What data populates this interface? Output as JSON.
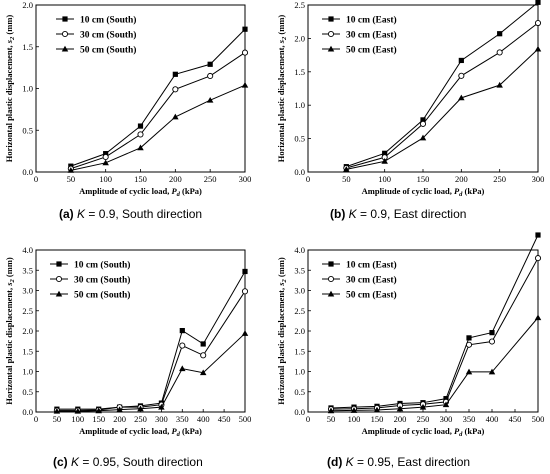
{
  "chart_data": [
    {
      "type": "line",
      "x": [
        50,
        100,
        150,
        200,
        250,
        300
      ],
      "xlim": [
        0,
        300
      ],
      "ylim": [
        0,
        2.0
      ],
      "xticks": [
        "0",
        "50",
        "100",
        "150",
        "200",
        "250",
        "300"
      ],
      "yticks": [
        "0.0",
        "0.5",
        "1.0",
        "1.5",
        "2.0"
      ],
      "xlabel_main": "Amplitude of cyclic load, ",
      "xlabel_var": "P",
      "xlabel_sub": "d",
      "xlabel_unit": " (kPa)",
      "ylabel_main": "Horizontal plastic displacement, ",
      "ylabel_var": "s",
      "ylabel_sub": "2",
      "ylabel_unit": " (mm)",
      "legend_position": "top-left",
      "series": [
        {
          "name": "10 cm (South)",
          "marker": "square",
          "values": [
            0.07,
            0.22,
            0.55,
            1.17,
            1.29,
            1.71
          ]
        },
        {
          "name": "30 cm (South)",
          "marker": "circle",
          "values": [
            0.04,
            0.18,
            0.45,
            0.99,
            1.15,
            1.43
          ]
        },
        {
          "name": "50 cm (South)",
          "marker": "triangle",
          "values": [
            0.02,
            0.11,
            0.29,
            0.66,
            0.86,
            1.04
          ]
        }
      ],
      "caption": {
        "label": "(a)",
        "k_var": "K",
        "rest": " = 0.9, South direction"
      }
    },
    {
      "type": "line",
      "x": [
        50,
        100,
        150,
        200,
        250,
        300
      ],
      "xlim": [
        0,
        300
      ],
      "ylim": [
        0,
        2.5
      ],
      "xticks": [
        "0",
        "50",
        "100",
        "150",
        "200",
        "250",
        "300"
      ],
      "yticks": [
        "0.0",
        "0.5",
        "1.0",
        "1.5",
        "2.0",
        "2.5"
      ],
      "xlabel_main": "Amplitude of cyclic load, ",
      "xlabel_var": "P",
      "xlabel_sub": "d",
      "xlabel_unit": " (kPa)",
      "ylabel_main": "Horizontal plastic displacement, ",
      "ylabel_var": "s",
      "ylabel_sub": "2",
      "ylabel_unit": " (mm)",
      "legend_position": "top-left",
      "series": [
        {
          "name": "10 cm (East)",
          "marker": "square",
          "values": [
            0.08,
            0.28,
            0.78,
            1.67,
            2.07,
            2.54
          ]
        },
        {
          "name": "30 cm (East)",
          "marker": "circle",
          "values": [
            0.06,
            0.22,
            0.72,
            1.44,
            1.79,
            2.23
          ]
        },
        {
          "name": "50 cm (East)",
          "marker": "triangle",
          "values": [
            0.04,
            0.16,
            0.51,
            1.11,
            1.3,
            1.84
          ]
        }
      ],
      "caption": {
        "label": "(b)",
        "k_var": "K",
        "rest": " = 0.9, East direction"
      }
    },
    {
      "type": "line",
      "x": [
        50,
        100,
        150,
        200,
        250,
        300,
        350,
        400,
        500
      ],
      "xlim": [
        0,
        500
      ],
      "ylim": [
        0,
        4.0
      ],
      "xticks": [
        "0",
        "50",
        "100",
        "150",
        "200",
        "250",
        "300",
        "350",
        "400",
        "450",
        "500"
      ],
      "yticks": [
        "0.0",
        "0.5",
        "1.0",
        "1.5",
        "2.0",
        "2.5",
        "3.0",
        "3.5",
        "4.0"
      ],
      "xlabel_main": "Amplitude of cyclic load, ",
      "xlabel_var": "P",
      "xlabel_sub": "d",
      "xlabel_unit": " (kPa)",
      "ylabel_main": "Horizontal plastic displacement, ",
      "ylabel_var": "s",
      "ylabel_sub": "2",
      "ylabel_unit": " (mm)",
      "legend_position": "top-left",
      "series": [
        {
          "name": "10 cm (South)",
          "marker": "square",
          "values": [
            0.07,
            0.07,
            0.07,
            0.12,
            0.15,
            0.22,
            2.01,
            1.68,
            3.47
          ]
        },
        {
          "name": "30 cm (South)",
          "marker": "circle",
          "values": [
            0.04,
            0.04,
            0.05,
            0.12,
            0.12,
            0.18,
            1.64,
            1.4,
            2.98
          ]
        },
        {
          "name": "50 cm (South)",
          "marker": "triangle",
          "values": [
            0.02,
            0.02,
            0.03,
            0.06,
            0.08,
            0.12,
            1.07,
            0.97,
            1.94
          ]
        }
      ],
      "caption": {
        "label": "(c)",
        "k_var": "K",
        "rest": " = 0.95, South direction"
      }
    },
    {
      "type": "line",
      "x": [
        50,
        100,
        150,
        200,
        250,
        300,
        350,
        400,
        500
      ],
      "xlim": [
        0,
        500
      ],
      "ylim": [
        0,
        4.0
      ],
      "xticks": [
        "0",
        "50",
        "100",
        "150",
        "200",
        "250",
        "300",
        "350",
        "400",
        "450",
        "500"
      ],
      "yticks": [
        "0.0",
        "0.5",
        "1.0",
        "1.5",
        "2.0",
        "2.5",
        "3.0",
        "3.5",
        "4.0"
      ],
      "xlabel_main": "Amplitude of cyclic load, ",
      "xlabel_var": "P",
      "xlabel_sub": "d",
      "xlabel_unit": " (kPa)",
      "ylabel_main": "Horizontal plastic displacement, ",
      "ylabel_var": "s",
      "ylabel_sub": "2",
      "ylabel_unit": " (mm)",
      "legend_position": "top-left",
      "series": [
        {
          "name": "10 cm (East)",
          "marker": "square",
          "values": [
            0.1,
            0.12,
            0.14,
            0.21,
            0.23,
            0.33,
            1.83,
            1.96,
            4.37
          ]
        },
        {
          "name": "30 cm (East)",
          "marker": "circle",
          "values": [
            0.07,
            0.08,
            0.1,
            0.16,
            0.19,
            0.25,
            1.66,
            1.74,
            3.8
          ]
        },
        {
          "name": "50 cm (East)",
          "marker": "triangle",
          "values": [
            0.03,
            0.04,
            0.05,
            0.08,
            0.12,
            0.18,
            0.99,
            0.99,
            2.33
          ]
        }
      ],
      "caption": {
        "label": "(d)",
        "k_var": "K",
        "rest": " = 0.95, East direction"
      }
    }
  ]
}
